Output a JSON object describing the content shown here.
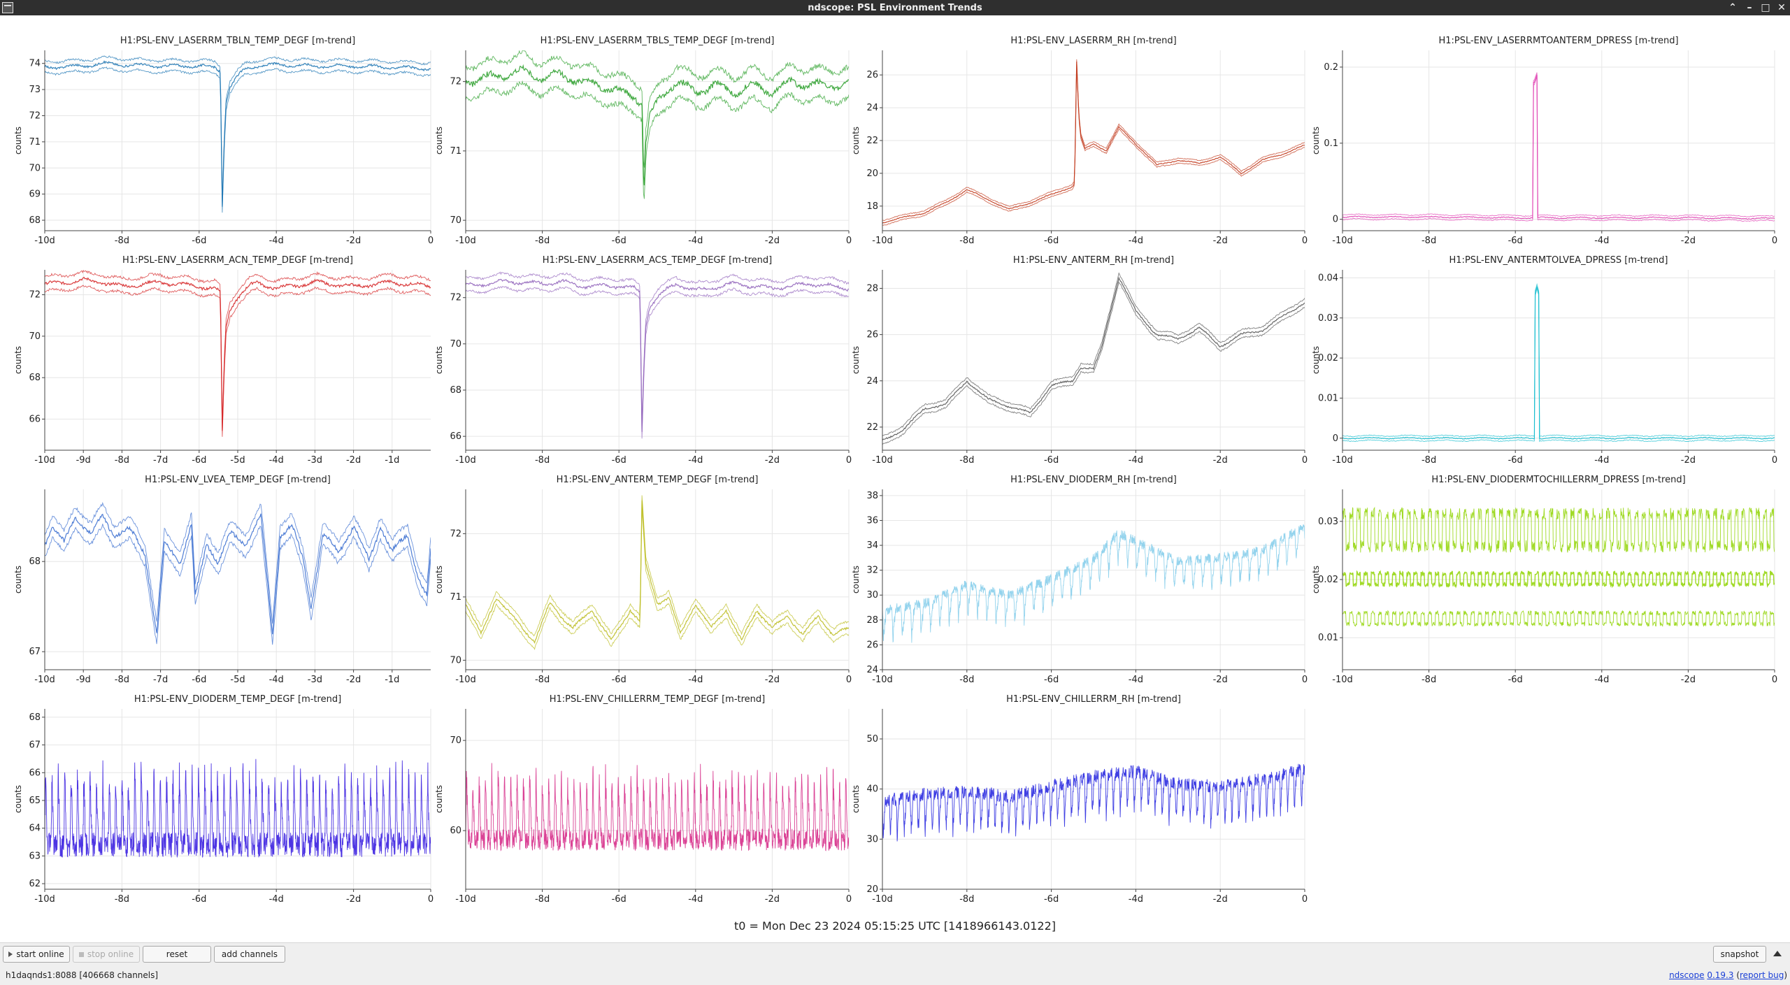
{
  "window": {
    "title": "ndscope: PSL Environment Trends",
    "icons": [
      "app-menu-icon",
      "chevron-up-icon",
      "minimize-icon",
      "maximize-icon",
      "close-icon"
    ]
  },
  "t0_label": "t0 = Mon Dec 23 2024 05:15:25 UTC [1418966143.0122]",
  "toolbar": {
    "start_online": "start online",
    "stop_online": "stop online",
    "reset": "reset",
    "add_channels": "add channels",
    "snapshot": "snapshot"
  },
  "status": {
    "server": "h1daqnds1:8088  [406668 channels]",
    "app_name": "ndscope",
    "version": "0.19.3",
    "report_bug": "report bug"
  },
  "chart_data": [
    {
      "type": "line",
      "title": "H1:PSL-ENV_LASERRM_TBLN_TEMP_DEGF [m-trend]",
      "ylabel": "counts",
      "color": "#1f77b4",
      "band": 0.22,
      "style": "band",
      "xlim": [
        -10,
        0
      ],
      "xticks": [
        -10,
        -8,
        -6,
        -4,
        -2,
        0
      ],
      "xticklabels": [
        "-10d",
        "-8d",
        "-6d",
        "-4d",
        "-2d",
        "0"
      ],
      "ylim": [
        67.6,
        74.5
      ],
      "yticks": [
        68,
        69,
        70,
        71,
        72,
        73,
        74
      ],
      "x": [
        -10,
        -9,
        -8.5,
        -8,
        -7,
        -6,
        -5.6,
        -5.45,
        -5.4,
        -5.35,
        -5.3,
        -5.2,
        -5,
        -4.8,
        -4.5,
        -4,
        -3,
        -2,
        -1,
        0
      ],
      "y": [
        73.85,
        73.9,
        74.0,
        73.95,
        73.9,
        73.9,
        73.85,
        73.7,
        68.6,
        71.0,
        72.5,
        73.1,
        73.5,
        73.8,
        73.9,
        73.95,
        73.9,
        73.9,
        73.85,
        73.8
      ]
    },
    {
      "type": "line",
      "title": "H1:PSL-ENV_LASERRM_TBLS_TEMP_DEGF [m-trend]",
      "ylabel": "counts",
      "color": "#2ca02c",
      "band": 0.22,
      "style": "band",
      "xlim": [
        -10,
        0
      ],
      "xticks": [
        -10,
        -8,
        -6,
        -4,
        -2,
        0
      ],
      "xticklabels": [
        "-10d",
        "-8d",
        "-6d",
        "-4d",
        "-2d",
        "0"
      ],
      "ylim": [
        69.85,
        72.45
      ],
      "yticks": [
        70,
        71,
        72
      ],
      "x": [
        -10,
        -9,
        -8.5,
        -8,
        -7.5,
        -7,
        -6.5,
        -6,
        -5.6,
        -5.4,
        -5.35,
        -5.3,
        -5.2,
        -5,
        -4.7,
        -4.5,
        -4,
        -3.5,
        -3,
        -2.5,
        -2,
        -1.5,
        -1,
        0
      ],
      "y": [
        72.0,
        72.1,
        72.15,
        72.05,
        72.1,
        72.0,
        71.95,
        71.85,
        71.8,
        71.7,
        70.4,
        71.1,
        71.5,
        71.7,
        71.9,
        72.0,
        71.85,
        71.95,
        71.85,
        71.95,
        71.85,
        72.0,
        71.95,
        71.95
      ]
    },
    {
      "type": "line",
      "title": "H1:PSL-ENV_LASERRM_RH [m-trend]",
      "ylabel": "counts",
      "color": "#c23b1e",
      "band": 0.15,
      "style": "band",
      "xlim": [
        -10,
        0
      ],
      "xticks": [
        -10,
        -8,
        -6,
        -4,
        -2,
        0
      ],
      "xticklabels": [
        "-10d",
        "-8d",
        "-6d",
        "-4d",
        "-2d",
        "0"
      ],
      "ylim": [
        16.5,
        27.5
      ],
      "yticks": [
        18,
        20,
        22,
        24,
        26
      ],
      "x": [
        -10,
        -9,
        -8.5,
        -8,
        -7.5,
        -7,
        -6.5,
        -6,
        -5.5,
        -5.45,
        -5.4,
        -5.35,
        -5.3,
        -5.2,
        -5,
        -4.7,
        -4.4,
        -4,
        -3.5,
        -3,
        -2.5,
        -2,
        -1.5,
        -1,
        -0.5,
        0
      ],
      "y": [
        17.0,
        17.6,
        18.2,
        19.0,
        18.4,
        17.8,
        18.2,
        18.7,
        19.2,
        19.4,
        26.8,
        23.5,
        22.2,
        21.5,
        21.8,
        21.4,
        22.8,
        21.8,
        20.5,
        20.8,
        20.6,
        21.0,
        20.0,
        20.8,
        21.2,
        21.7
      ]
    },
    {
      "type": "line",
      "title": "H1:PSL-ENV_LASERRMTOANTERM_DPRESS [m-trend]",
      "ylabel": "counts",
      "color": "#e044b4",
      "band": 0.003,
      "style": "band",
      "xlim": [
        -10,
        0
      ],
      "xticks": [
        -10,
        -8,
        -6,
        -4,
        -2,
        0
      ],
      "xticklabels": [
        "-10d",
        "-8d",
        "-6d",
        "-4d",
        "-2d",
        "0"
      ],
      "ylim": [
        -0.015,
        0.222
      ],
      "yticks": [
        0,
        0.1,
        0.2
      ],
      "x": [
        -10,
        -8,
        -6,
        -5.6,
        -5.58,
        -5.56,
        -5.5,
        -5.48,
        -5.46,
        -4,
        -2,
        0
      ],
      "y": [
        0.003,
        0.003,
        0.002,
        0.002,
        0.18,
        0.18,
        0.19,
        0.002,
        0.002,
        0.002,
        0.002,
        0.001
      ]
    },
    {
      "type": "line",
      "title": "H1:PSL-ENV_LASERRM_ACN_TEMP_DEGF [m-trend]",
      "ylabel": "counts",
      "color": "#d62728",
      "band": 0.35,
      "style": "band",
      "xlim": [
        -10,
        0
      ],
      "xticks": [
        -10,
        -9,
        -8,
        -7,
        -6,
        -5,
        -4,
        -3,
        -2,
        -1
      ],
      "xticklabels": [
        "-10d",
        "-9d",
        "-8d",
        "-7d",
        "-6d",
        "-5d",
        "-4d",
        "-3d",
        "-2d",
        "-1d"
      ],
      "ylim": [
        64.5,
        73.2
      ],
      "yticks": [
        66,
        68,
        70,
        72
      ],
      "x": [
        -10,
        -9,
        -8.5,
        -8,
        -7,
        -6,
        -5.6,
        -5.45,
        -5.4,
        -5.35,
        -5.3,
        -5.2,
        -5,
        -4.7,
        -4.5,
        -4,
        -3,
        -2,
        -1,
        0
      ],
      "y": [
        72.5,
        72.7,
        72.6,
        72.4,
        72.6,
        72.4,
        72.3,
        72.1,
        65.4,
        68.5,
        70.5,
        71.3,
        71.9,
        72.4,
        72.6,
        72.3,
        72.6,
        72.4,
        72.6,
        72.4
      ]
    },
    {
      "type": "line",
      "title": "H1:PSL-ENV_LASERRM_ACS_TEMP_DEGF [m-trend]",
      "ylabel": "counts",
      "color": "#9467bd",
      "band": 0.3,
      "style": "band",
      "xlim": [
        -10,
        0
      ],
      "xticks": [
        -10,
        -8,
        -6,
        -4,
        -2,
        0
      ],
      "xticklabels": [
        "-10d",
        "-8d",
        "-6d",
        "-4d",
        "-2d",
        "0"
      ],
      "ylim": [
        65.4,
        73.2
      ],
      "yticks": [
        66,
        68,
        70,
        72
      ],
      "x": [
        -10,
        -9,
        -8,
        -7.5,
        -7,
        -6,
        -5.6,
        -5.45,
        -5.4,
        -5.35,
        -5.3,
        -5.2,
        -5,
        -4.7,
        -4.5,
        -4,
        -3,
        -2,
        -1,
        0
      ],
      "y": [
        72.5,
        72.7,
        72.6,
        72.7,
        72.5,
        72.5,
        72.4,
        72.2,
        66.2,
        69.0,
        70.8,
        71.6,
        72.0,
        72.4,
        72.6,
        72.3,
        72.6,
        72.4,
        72.6,
        72.4
      ]
    },
    {
      "type": "line",
      "title": "H1:PSL-ENV_ANTERM_RH [m-trend]",
      "ylabel": "counts",
      "color": "#555555",
      "band": 0.18,
      "style": "band",
      "xlim": [
        -10,
        0
      ],
      "xticks": [
        -10,
        -8,
        -6,
        -4,
        -2,
        0
      ],
      "xticklabels": [
        "-10d",
        "-8d",
        "-6d",
        "-4d",
        "-2d",
        "0"
      ],
      "ylim": [
        21.0,
        28.8
      ],
      "yticks": [
        22,
        24,
        26,
        28
      ],
      "x": [
        -10,
        -9.5,
        -9,
        -8.5,
        -8,
        -7.5,
        -7,
        -6.5,
        -6,
        -5.5,
        -5.3,
        -5,
        -4.8,
        -4.4,
        -4,
        -3.5,
        -3,
        -2.5,
        -2,
        -1.5,
        -1,
        -0.5,
        0
      ],
      "y": [
        21.4,
        21.9,
        22.8,
        23.0,
        24.0,
        23.2,
        22.9,
        22.6,
        23.8,
        24.0,
        24.6,
        24.5,
        25.5,
        28.5,
        27.0,
        26.0,
        25.8,
        26.3,
        25.5,
        26.0,
        26.2,
        26.8,
        27.4
      ]
    },
    {
      "type": "line",
      "title": "H1:PSL-ENV_ANTERMTOLVEA_DPRESS [m-trend]",
      "ylabel": "counts",
      "color": "#17becf",
      "band": 0.0006,
      "style": "band",
      "xlim": [
        -10,
        0
      ],
      "xticks": [
        -10,
        -8,
        -6,
        -4,
        -2,
        0
      ],
      "xticklabels": [
        "-10d",
        "-8d",
        "-6d",
        "-4d",
        "-2d",
        "0"
      ],
      "ylim": [
        -0.003,
        0.042
      ],
      "yticks": [
        0,
        0.01,
        0.02,
        0.03,
        0.04
      ],
      "x": [
        -10,
        -6,
        -5.56,
        -5.55,
        -5.5,
        -5.45,
        -5.44,
        -4,
        -2,
        0
      ],
      "y": [
        0,
        0,
        0,
        0.036,
        0.038,
        0.036,
        0,
        0,
        0,
        0
      ]
    },
    {
      "type": "line",
      "title": "H1:PSL-ENV_LVEA_TEMP_DEGF [m-trend]",
      "ylabel": "counts",
      "color": "#3b6fd0",
      "band": 0.12,
      "style": "band",
      "xlim": [
        -10,
        0
      ],
      "xticks": [
        -10,
        -9,
        -8,
        -7,
        -6,
        -5,
        -4,
        -3,
        -2,
        -1
      ],
      "xticklabels": [
        "-10d",
        "-9d",
        "-8d",
        "-7d",
        "-6d",
        "-5d",
        "-4d",
        "-3d",
        "-2d",
        "-1d"
      ],
      "ylim": [
        66.8,
        68.8
      ],
      "yticks": [
        67,
        68
      ],
      "x": [
        -10,
        -9.8,
        -9.5,
        -9.2,
        -8.8,
        -8.5,
        -8.2,
        -7.8,
        -7.4,
        -7.1,
        -6.9,
        -6.5,
        -6.2,
        -6.1,
        -5.8,
        -5.5,
        -5.2,
        -4.8,
        -4.4,
        -4.1,
        -3.9,
        -3.6,
        -3.3,
        -3.1,
        -2.8,
        -2.4,
        -2.0,
        -1.6,
        -1.3,
        -1.0,
        -0.6,
        -0.3,
        -0.1,
        0
      ],
      "y": [
        68.2,
        68.4,
        68.2,
        68.5,
        68.3,
        68.5,
        68.3,
        68.35,
        68.1,
        67.2,
        68.2,
        68.0,
        68.4,
        67.6,
        68.2,
        68.0,
        68.3,
        68.2,
        68.5,
        67.2,
        68.3,
        68.4,
        68.0,
        67.5,
        68.3,
        68.1,
        68.4,
        68.0,
        68.4,
        68.1,
        68.3,
        67.8,
        67.6,
        68.1
      ]
    },
    {
      "type": "line",
      "title": "H1:PSL-ENV_ANTERM_TEMP_DEGF [m-trend]",
      "ylabel": "counts",
      "color": "#bcbd22",
      "band": 0.1,
      "style": "band",
      "xlim": [
        -10,
        0
      ],
      "xticks": [
        -10,
        -8,
        -6,
        -4,
        -2,
        0
      ],
      "xticklabels": [
        "-10d",
        "-8d",
        "-6d",
        "-4d",
        "-2d",
        "0"
      ],
      "ylim": [
        69.85,
        72.7
      ],
      "yticks": [
        70,
        71,
        72
      ],
      "x": [
        -10,
        -9.6,
        -9.2,
        -8.8,
        -8.2,
        -7.8,
        -7.2,
        -6.7,
        -6.2,
        -5.7,
        -5.45,
        -5.4,
        -5.3,
        -5.0,
        -4.7,
        -4.4,
        -4.0,
        -3.6,
        -3.2,
        -2.8,
        -2.4,
        -2.0,
        -1.6,
        -1.2,
        -0.8,
        -0.4,
        0
      ],
      "y": [
        70.9,
        70.4,
        71.0,
        70.7,
        70.3,
        70.9,
        70.5,
        70.8,
        70.3,
        70.8,
        70.6,
        72.5,
        71.5,
        70.9,
        71.0,
        70.4,
        70.9,
        70.5,
        70.8,
        70.3,
        70.8,
        70.5,
        70.7,
        70.4,
        70.7,
        70.4,
        70.5
      ]
    },
    {
      "type": "line",
      "title": "H1:PSL-ENV_DIODERM_RH [m-trend]",
      "ylabel": "counts",
      "color": "#87ceeb",
      "style": "osc",
      "period": 0.222,
      "amp": 2.3,
      "dip": "down",
      "xlim": [
        -10,
        0
      ],
      "xticks": [
        -10,
        -8,
        -6,
        -4,
        -2,
        0
      ],
      "xticklabels": [
        "-10d",
        "-8d",
        "-6d",
        "-4d",
        "-2d",
        "0"
      ],
      "ylim": [
        24.0,
        38.5
      ],
      "yticks": [
        24,
        26,
        28,
        30,
        32,
        34,
        36,
        38
      ],
      "x": [
        -10,
        -9,
        -8,
        -7,
        -6,
        -5,
        -4.4,
        -4,
        -3,
        -2,
        -1,
        0
      ],
      "y": [
        28.8,
        29.3,
        30.8,
        30.0,
        31.3,
        32.9,
        35.0,
        34.3,
        32.7,
        33.0,
        33.6,
        35.5
      ]
    },
    {
      "type": "line",
      "title": "H1:PSL-ENV_DIODERMTOCHILLERRM_DPRESS [m-trend]",
      "ylabel": "counts",
      "color": "#8fd400",
      "style": "bands3",
      "xlim": [
        -10,
        0
      ],
      "xticks": [
        -10,
        -8,
        -6,
        -4,
        -2,
        0
      ],
      "xticklabels": [
        "-10d",
        "-8d",
        "-6d",
        "-4d",
        "-2d",
        "0"
      ],
      "ylim": [
        0.0045,
        0.0355
      ],
      "yticks": [
        0.01,
        0.02,
        0.03
      ],
      "x": [
        -10,
        0
      ],
      "y": [
        0.0201,
        0.0201
      ]
    },
    {
      "type": "line",
      "title": "H1:PSL-ENV_DIODERM_TEMP_DEGF [m-trend]",
      "ylabel": "counts",
      "color": "#3a1fe0",
      "style": "osc",
      "period": 0.165,
      "amp": 2.6,
      "dip": "up",
      "xlim": [
        -10,
        0
      ],
      "xticks": [
        -10,
        -8,
        -6,
        -4,
        -2,
        0
      ],
      "xticklabels": [
        "-10d",
        "-8d",
        "-6d",
        "-4d",
        "-2d",
        "0"
      ],
      "ylim": [
        61.8,
        68.3
      ],
      "yticks": [
        62,
        63,
        64,
        65,
        66,
        67,
        68
      ],
      "x": [
        -10,
        0
      ],
      "y": [
        63.4,
        63.4
      ]
    },
    {
      "type": "line",
      "title": "H1:PSL-ENV_CHILLERRM_TEMP_DEGF [m-trend]",
      "ylabel": "counts",
      "color": "#d62e8a",
      "style": "osc",
      "period": 0.165,
      "amp": 7.0,
      "dip": "up",
      "xlim": [
        -10,
        0
      ],
      "xticks": [
        -10,
        -8,
        -6,
        -4,
        -2,
        0
      ],
      "xticklabels": [
        "-10d",
        "-8d",
        "-6d",
        "-4d",
        "-2d",
        "0"
      ],
      "ylim": [
        53.5,
        73.5
      ],
      "yticks": [
        60,
        70
      ],
      "x": [
        -10,
        0
      ],
      "y": [
        59.0,
        59.0
      ]
    },
    {
      "type": "line",
      "title": "H1:PSL-ENV_CHILLERRM_RH [m-trend]",
      "ylabel": "counts",
      "color": "#2a2ae0",
      "style": "osc",
      "period": 0.165,
      "amp": 7.5,
      "dip": "down",
      "xlim": [
        -10,
        0
      ],
      "xticks": [
        -10,
        -8,
        -6,
        -4,
        -2,
        0
      ],
      "xticklabels": [
        "-10d",
        "-8d",
        "-6d",
        "-4d",
        "-2d",
        "0"
      ],
      "ylim": [
        20,
        56
      ],
      "yticks": [
        20,
        30,
        40,
        50
      ],
      "x": [
        -10,
        -9,
        -8,
        -7,
        -6,
        -5,
        -4,
        -3,
        -2,
        -1,
        0
      ],
      "y": [
        37.5,
        39.0,
        39.5,
        38.5,
        40.5,
        42.5,
        43.5,
        41.0,
        40.5,
        42.0,
        44.0
      ]
    }
  ]
}
